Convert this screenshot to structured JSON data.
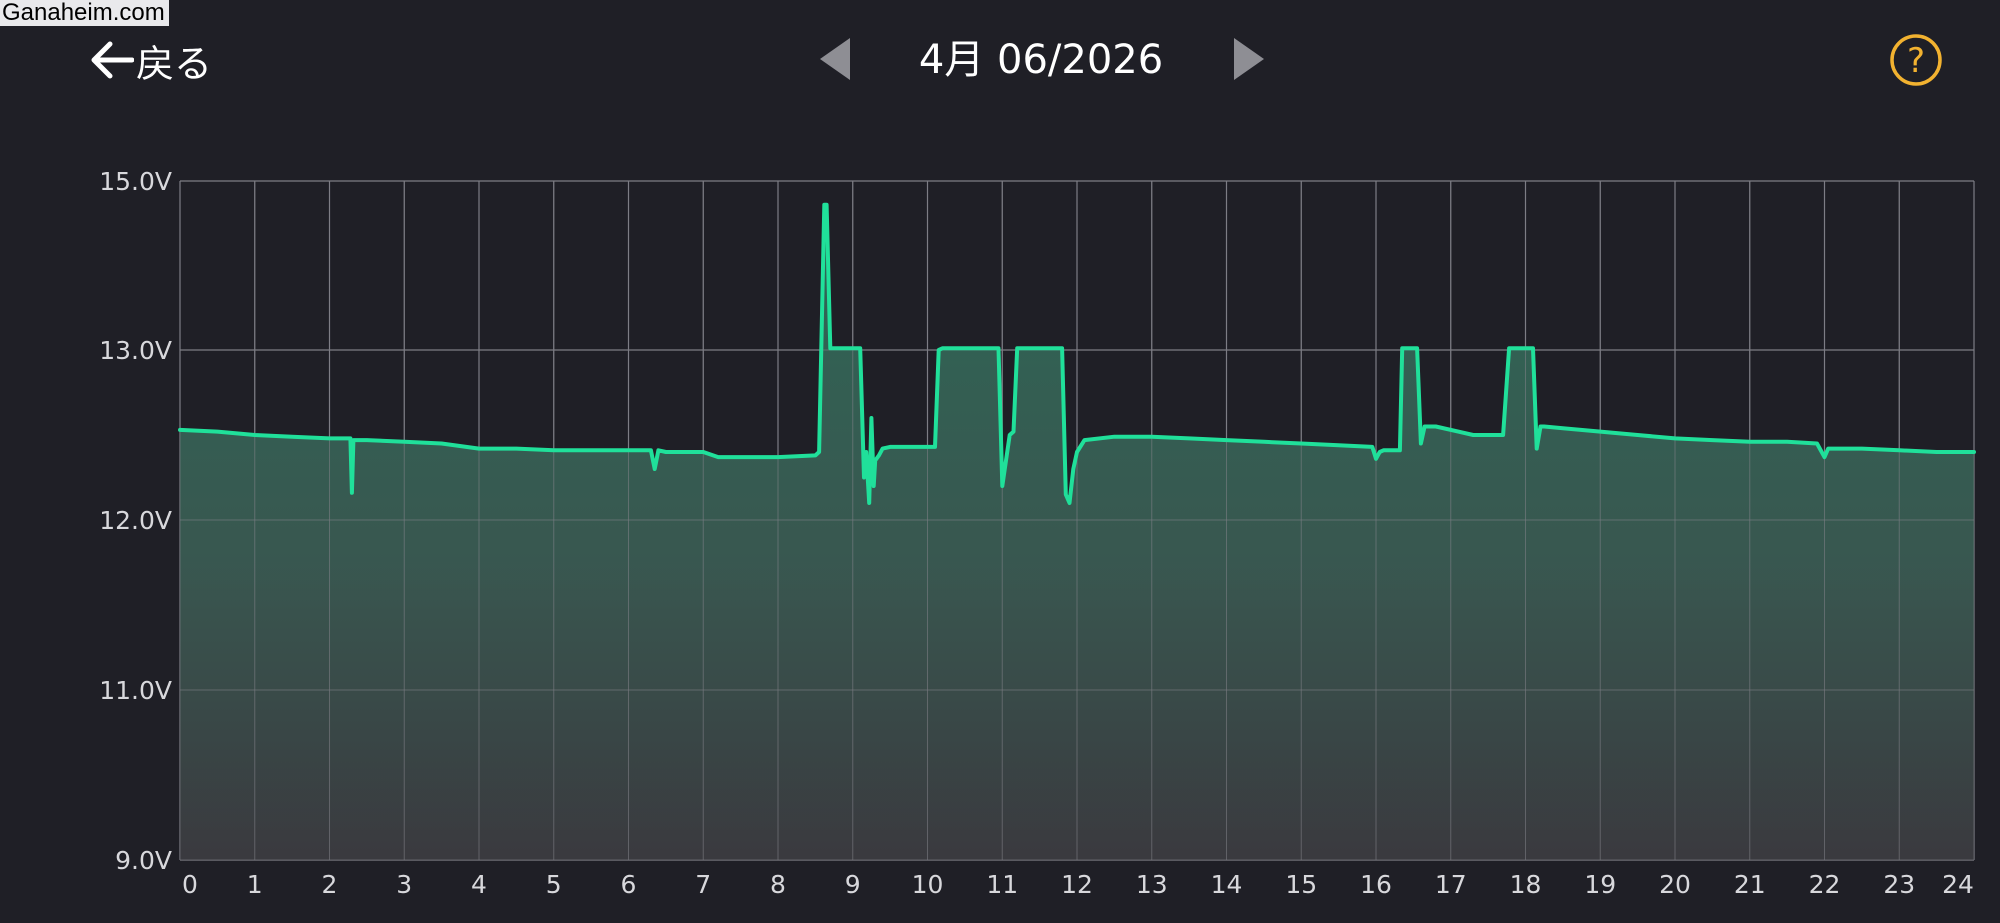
{
  "watermark": "Ganaheim.com",
  "header": {
    "back_label": "戻る",
    "date_title": "4月 06/2026"
  },
  "colors": {
    "background": "#1f1f26",
    "line": "#20e09a",
    "grid": "#7d7d85",
    "help_accent": "#f2b230"
  },
  "icons": {
    "back": "arrow-left-icon",
    "prev": "triangle-left-icon",
    "next": "triangle-right-icon",
    "help": "question-circle-icon"
  },
  "chart_data": {
    "type": "area",
    "xlabel": "",
    "ylabel": "",
    "xlim": [
      0,
      24
    ],
    "ylim": [
      9,
      15
    ],
    "y_ticks": [
      {
        "value": 15,
        "label": "15.0V"
      },
      {
        "value": 13,
        "label": "13.0V"
      },
      {
        "value": 12,
        "label": "12.0V"
      },
      {
        "value": 11,
        "label": "11.0V"
      },
      {
        "value": 9,
        "label": "9.0V"
      }
    ],
    "x_ticks": [
      "0",
      "1",
      "2",
      "3",
      "4",
      "5",
      "6",
      "7",
      "8",
      "9",
      "10",
      "11",
      "12",
      "13",
      "14",
      "15",
      "16",
      "17",
      "18",
      "19",
      "20",
      "21",
      "22",
      "23",
      "24"
    ],
    "grid": true,
    "series": [
      {
        "x": [
          0,
          0.5,
          1,
          1.5,
          2,
          2.28,
          2.3,
          2.32,
          2.35,
          2.5,
          3,
          3.5,
          4,
          4.5,
          5,
          5.5,
          6,
          6.3,
          6.35,
          6.4,
          6.5,
          7,
          7.2,
          7.5,
          8,
          8.5,
          8.55,
          8.62,
          8.65,
          8.7,
          8.75,
          9.1,
          9.15,
          9.18,
          9.22,
          9.25,
          9.28,
          9.3,
          9.35,
          9.4,
          9.5,
          9.7,
          10.1,
          10.15,
          10.2,
          10.5,
          10.95,
          11.0,
          11.05,
          11.1,
          11.15,
          11.2,
          11.3,
          11.6,
          11.8,
          11.85,
          11.9,
          11.95,
          12.0,
          12.1,
          12.5,
          13,
          13.5,
          14,
          14.5,
          15,
          15.5,
          15.95,
          16.0,
          16.05,
          16.1,
          16.3,
          16.32,
          16.35,
          16.55,
          16.6,
          16.65,
          16.8,
          17.1,
          17.3,
          17.7,
          17.78,
          17.8,
          18.1,
          18.15,
          18.2,
          18.25,
          18.5,
          19,
          19.5,
          20,
          20.5,
          21,
          21.5,
          21.9,
          22.0,
          22.05,
          22.1,
          22.5,
          23,
          23.5,
          24
        ],
        "y": [
          12.53,
          12.52,
          12.5,
          12.49,
          12.48,
          12.48,
          12.16,
          12.47,
          12.47,
          12.47,
          12.46,
          12.45,
          12.42,
          12.42,
          12.41,
          12.41,
          12.41,
          12.41,
          12.3,
          12.41,
          12.4,
          12.4,
          12.37,
          12.37,
          12.37,
          12.38,
          12.4,
          14.72,
          14.72,
          13.02,
          13.02,
          13.02,
          12.25,
          12.4,
          12.1,
          12.6,
          12.2,
          12.35,
          12.38,
          12.42,
          12.43,
          12.43,
          12.43,
          13.0,
          13.02,
          13.02,
          13.02,
          12.2,
          12.35,
          12.5,
          12.52,
          13.02,
          13.02,
          13.02,
          13.02,
          12.15,
          12.1,
          12.3,
          12.4,
          12.47,
          12.49,
          12.49,
          12.48,
          12.47,
          12.46,
          12.45,
          12.44,
          12.43,
          12.36,
          12.4,
          12.41,
          12.41,
          12.41,
          13.02,
          13.02,
          12.45,
          12.55,
          12.55,
          12.52,
          12.5,
          12.5,
          13.02,
          13.02,
          13.02,
          12.42,
          12.55,
          12.55,
          12.54,
          12.52,
          12.5,
          12.48,
          12.47,
          12.46,
          12.46,
          12.45,
          12.37,
          12.42,
          12.42,
          12.42,
          12.41,
          12.4,
          12.4
        ]
      }
    ]
  }
}
